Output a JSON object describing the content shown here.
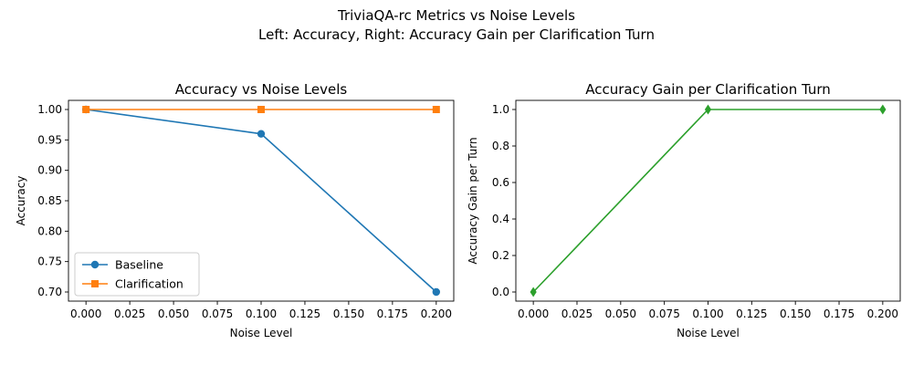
{
  "figure": {
    "suptitle_line1": "TriviaQA-rc Metrics vs Noise Levels",
    "suptitle_line2": "Left: Accuracy, Right: Accuracy Gain per Clarification Turn"
  },
  "chart_data": [
    {
      "type": "line",
      "title": "Accuracy vs Noise Levels",
      "xlabel": "Noise Level",
      "ylabel": "Accuracy",
      "xlim": [
        -0.01,
        0.21
      ],
      "ylim": [
        0.685,
        1.015
      ],
      "xticks": [
        0.0,
        0.025,
        0.05,
        0.075,
        0.1,
        0.125,
        0.15,
        0.175,
        0.2
      ],
      "xtick_labels": [
        "0.000",
        "0.025",
        "0.050",
        "0.075",
        "0.100",
        "0.125",
        "0.150",
        "0.175",
        "0.200"
      ],
      "yticks": [
        0.7,
        0.75,
        0.8,
        0.85,
        0.9,
        0.95,
        1.0
      ],
      "ytick_labels": [
        "0.70",
        "0.75",
        "0.80",
        "0.85",
        "0.90",
        "0.95",
        "1.00"
      ],
      "x": [
        0.0,
        0.1,
        0.2
      ],
      "series": [
        {
          "name": "Baseline",
          "values": [
            1.0,
            0.96,
            0.7
          ],
          "color": "#1f77b4",
          "marker": "circle"
        },
        {
          "name": "Clarification",
          "values": [
            1.0,
            1.0,
            1.0
          ],
          "color": "#ff7f0e",
          "marker": "square"
        }
      ],
      "legend": "lower-left",
      "grid": false
    },
    {
      "type": "line",
      "title": "Accuracy Gain per Clarification Turn",
      "xlabel": "Noise Level",
      "ylabel": "Accuracy Gain per Turn",
      "xlim": [
        -0.01,
        0.21
      ],
      "ylim": [
        -0.05,
        1.05
      ],
      "xticks": [
        0.0,
        0.025,
        0.05,
        0.075,
        0.1,
        0.125,
        0.15,
        0.175,
        0.2
      ],
      "xtick_labels": [
        "0.000",
        "0.025",
        "0.050",
        "0.075",
        "0.100",
        "0.125",
        "0.150",
        "0.175",
        "0.200"
      ],
      "yticks": [
        0.0,
        0.2,
        0.4,
        0.6,
        0.8,
        1.0
      ],
      "ytick_labels": [
        "0.0",
        "0.2",
        "0.4",
        "0.6",
        "0.8",
        "1.0"
      ],
      "x": [
        0.0,
        0.1,
        0.2
      ],
      "series": [
        {
          "values": [
            0.0,
            1.0,
            1.0
          ],
          "color": "#2ca02c",
          "marker": "diamond"
        }
      ],
      "grid": false
    }
  ]
}
